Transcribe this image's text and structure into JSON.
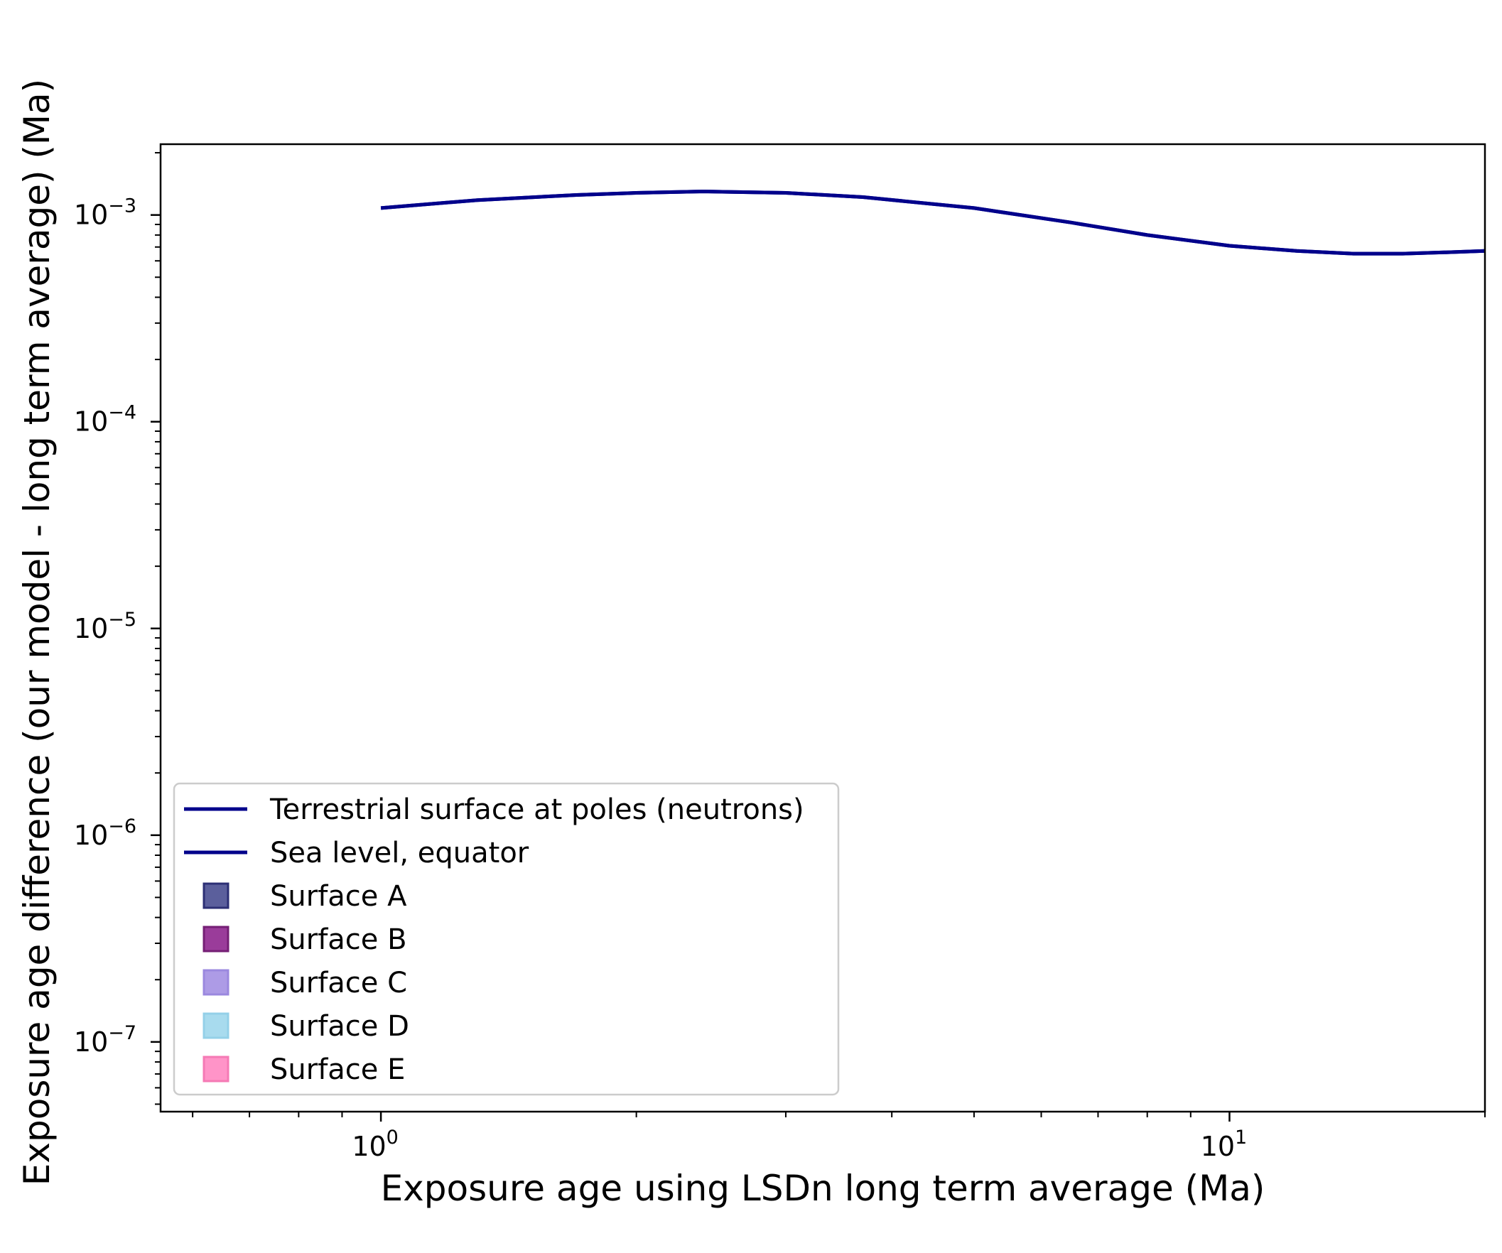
{
  "chart_data": {
    "type": "line",
    "title": "",
    "xlabel": "Exposure age using LSDn long term average (Ma)",
    "ylabel": "Exposure age difference (our model - long term average) (Ma)",
    "xscale": "log",
    "yscale": "log",
    "xlim": [
      0.55,
      20
    ],
    "ylim": [
      4.6e-08,
      0.0022
    ],
    "grid": false,
    "legend_position": "lower-left",
    "x_ticks": [
      {
        "value": 1,
        "base": "10",
        "exp": "0"
      },
      {
        "value": 10,
        "base": "10",
        "exp": "1"
      }
    ],
    "y_ticks": [
      {
        "value": 0.001,
        "base": "10",
        "exp": "−3"
      },
      {
        "value": 0.0001,
        "base": "10",
        "exp": "−4"
      },
      {
        "value": 1e-05,
        "base": "10",
        "exp": "−5"
      },
      {
        "value": 1e-06,
        "base": "10",
        "exp": "−6"
      },
      {
        "value": 1e-07,
        "base": "10",
        "exp": "−7"
      }
    ],
    "series": [
      {
        "name": "Terrestrial surface at poles (neutrons)",
        "color": "#00008b",
        "x": [
          1.0,
          1.3,
          1.7,
          2.0,
          2.4,
          3.0,
          3.7,
          5.0,
          6.5,
          8.0,
          10.0,
          12.0,
          14.0,
          16.0,
          18.0,
          20.0
        ],
        "y": [
          0.00108,
          0.00118,
          0.00125,
          0.00128,
          0.0013,
          0.00128,
          0.00122,
          0.00108,
          0.00092,
          0.0008,
          0.00071,
          0.00067,
          0.00065,
          0.00065,
          0.00066,
          0.00067
        ]
      },
      {
        "name": "Sea level, equator",
        "color": "#00008b",
        "x": [
          1.0,
          1.3,
          1.7,
          2.0,
          2.4,
          3.0,
          3.7,
          5.0,
          6.5,
          8.0,
          10.0,
          12.0,
          14.0,
          16.0,
          18.0,
          20.0
        ],
        "y": [
          0.00108,
          0.00118,
          0.00125,
          0.00128,
          0.0013,
          0.00128,
          0.00122,
          0.00108,
          0.00092,
          0.0008,
          0.00071,
          0.00067,
          0.00065,
          0.00065,
          0.00066,
          0.00067
        ]
      }
    ],
    "legend": [
      {
        "label": "Terrestrial surface at poles (neutrons)",
        "kind": "line",
        "color": "#00008b"
      },
      {
        "label": "Sea level, equator",
        "kind": "line",
        "color": "#00008b"
      },
      {
        "label": "Surface A",
        "kind": "patch",
        "color": "#5b5f9c",
        "edge": "#2c2f75"
      },
      {
        "label": "Surface B",
        "kind": "patch",
        "color": "#9a3c9a",
        "edge": "#751f75"
      },
      {
        "label": "Surface C",
        "kind": "patch",
        "color": "#ad9be6",
        "edge": "#9b88df"
      },
      {
        "label": "Surface D",
        "kind": "patch",
        "color": "#a8dbee",
        "edge": "#94d0e8"
      },
      {
        "label": "Surface E",
        "kind": "patch",
        "color": "#ff94c8",
        "edge": "#f57ab5"
      }
    ]
  }
}
